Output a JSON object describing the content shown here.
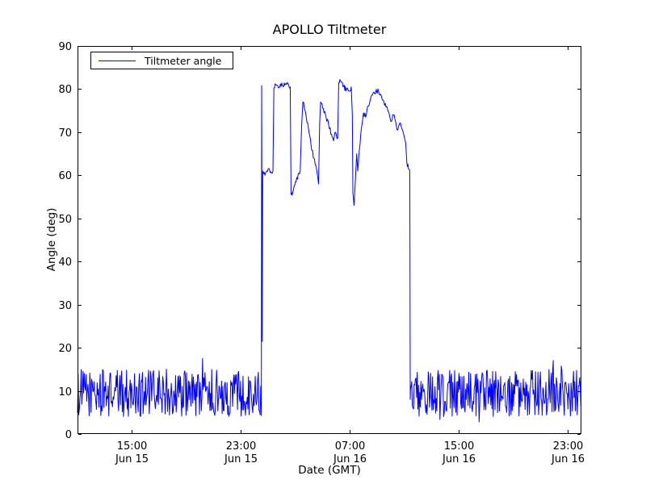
{
  "chart_data": {
    "type": "line",
    "title": "APOLLO Tiltmeter",
    "xlabel": "Date (GMT)",
    "ylabel": "Angle (deg)",
    "ylim": [
      0,
      90
    ],
    "yticks": [
      0,
      10,
      20,
      30,
      40,
      50,
      60,
      70,
      80,
      90
    ],
    "x_range_hours": [
      0,
      37
    ],
    "xticks": [
      {
        "hours": 4,
        "time": "15:00",
        "date": "Jun 15"
      },
      {
        "hours": 12,
        "time": "23:00",
        "date": "Jun 15"
      },
      {
        "hours": 20,
        "time": "07:00",
        "date": "Jun 16"
      },
      {
        "hours": 28,
        "time": "15:00",
        "date": "Jun 16"
      },
      {
        "hours": 36,
        "time": "23:00",
        "date": "Jun 16"
      }
    ],
    "grid": false,
    "legend": {
      "label": "Tiltmeter angle",
      "position": "upper left"
    },
    "frame_color": "#000000",
    "background_color": "#ffffff",
    "series": [
      {
        "name": "Tiltmeter angle",
        "color": "#0000ff",
        "description": "Noisy baseline near 9-10 deg, high plateau 53-82 deg between ~00:30 and ~11:30 Jun 16, then noisy baseline again",
        "baseline_segments": [
          {
            "t_start": 0.0,
            "t_end": 13.5,
            "mean": 9.5,
            "amplitude": 5.5,
            "step_hours": 0.045
          },
          {
            "t_start": 24.45,
            "t_end": 37.0,
            "mean": 9.5,
            "amplitude": 5.5,
            "step_hours": 0.045
          }
        ],
        "event_noise": 0.6,
        "event_keypoints": [
          [
            13.5,
            10.0
          ],
          [
            13.52,
            80.8
          ],
          [
            13.56,
            21.5
          ],
          [
            13.6,
            61.0
          ],
          [
            13.8,
            60.5
          ],
          [
            14.0,
            61.5
          ],
          [
            14.2,
            60.8
          ],
          [
            14.35,
            61.0
          ],
          [
            14.42,
            80.3
          ],
          [
            14.6,
            81.0
          ],
          [
            14.75,
            80.3
          ],
          [
            14.9,
            81.2
          ],
          [
            15.1,
            80.6
          ],
          [
            15.3,
            81.3
          ],
          [
            15.5,
            81.0
          ],
          [
            15.62,
            80.5
          ],
          [
            15.68,
            55.5
          ],
          [
            15.85,
            56.5
          ],
          [
            16.05,
            58.5
          ],
          [
            16.25,
            60.5
          ],
          [
            16.35,
            61.0
          ],
          [
            16.45,
            71.0
          ],
          [
            16.55,
            77.0
          ],
          [
            16.75,
            74.5
          ],
          [
            16.95,
            71.0
          ],
          [
            17.15,
            67.0
          ],
          [
            17.35,
            64.0
          ],
          [
            17.55,
            61.5
          ],
          [
            17.7,
            58.0
          ],
          [
            17.78,
            72.0
          ],
          [
            17.85,
            77.0
          ],
          [
            18.05,
            75.5
          ],
          [
            18.25,
            73.5
          ],
          [
            18.45,
            71.5
          ],
          [
            18.65,
            69.5
          ],
          [
            18.8,
            68.0
          ],
          [
            18.95,
            70.0
          ],
          [
            19.1,
            68.5
          ],
          [
            19.18,
            81.5
          ],
          [
            19.3,
            82.0
          ],
          [
            19.5,
            80.5
          ],
          [
            19.75,
            80.0
          ],
          [
            19.95,
            79.5
          ],
          [
            20.1,
            80.5
          ],
          [
            20.18,
            74.0
          ],
          [
            20.22,
            56.0
          ],
          [
            20.3,
            53.0
          ],
          [
            20.42,
            60.0
          ],
          [
            20.5,
            65.0
          ],
          [
            20.58,
            61.0
          ],
          [
            20.7,
            66.0
          ],
          [
            20.85,
            71.0
          ],
          [
            21.0,
            74.5
          ],
          [
            21.15,
            73.5
          ],
          [
            21.3,
            76.0
          ],
          [
            21.5,
            77.5
          ],
          [
            21.7,
            79.0
          ],
          [
            21.9,
            79.5
          ],
          [
            22.1,
            79.5
          ],
          [
            22.3,
            78.5
          ],
          [
            22.5,
            77.0
          ],
          [
            22.7,
            76.0
          ],
          [
            22.9,
            74.0
          ],
          [
            23.05,
            72.5
          ],
          [
            23.2,
            74.0
          ],
          [
            23.35,
            72.5
          ],
          [
            23.5,
            70.5
          ],
          [
            23.65,
            72.0
          ],
          [
            23.8,
            71.0
          ],
          [
            23.95,
            69.5
          ],
          [
            24.1,
            67.5
          ],
          [
            24.18,
            63.0
          ],
          [
            24.3,
            61.5
          ],
          [
            24.4,
            61.0
          ],
          [
            24.43,
            8.0
          ]
        ]
      }
    ]
  }
}
